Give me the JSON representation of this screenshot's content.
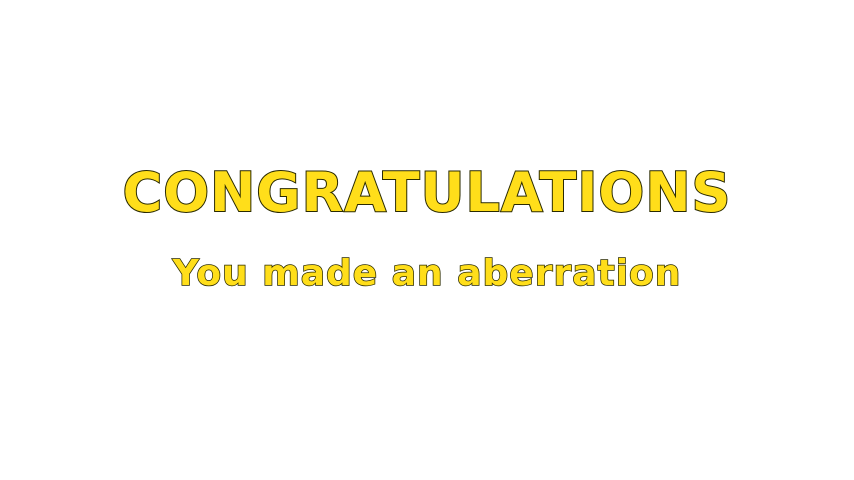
{
  "screen": {
    "headline": "CONGRATULATIONS",
    "subline": "You made an aberration"
  },
  "colors": {
    "background": "#ffffff",
    "text_fill": "#ffde1a",
    "text_outline": "#2a2a00"
  }
}
